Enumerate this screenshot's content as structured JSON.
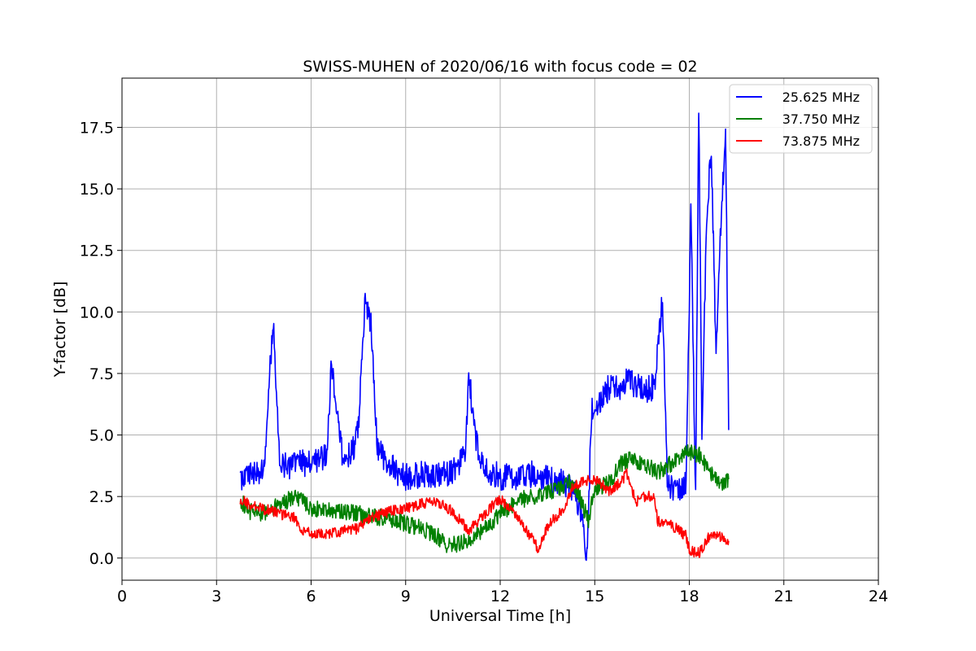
{
  "chart_data": {
    "type": "line",
    "title": "SWISS-MUHEN of 2020/06/16 with focus code = 02",
    "xlabel": "Universal Time [h]",
    "ylabel": "Y-factor [dB]",
    "xlim": [
      0,
      24
    ],
    "ylim": [
      -0.9,
      19.5
    ],
    "xticks": [
      0,
      3,
      6,
      9,
      12,
      15,
      18,
      21,
      24
    ],
    "xtick_labels": [
      "0",
      "3",
      "6",
      "9",
      "12",
      "15",
      "18",
      "21",
      "24"
    ],
    "yticks": [
      0.0,
      2.5,
      5.0,
      7.5,
      10.0,
      12.5,
      15.0,
      17.5
    ],
    "ytick_labels": [
      "0.0",
      "2.5",
      "5.0",
      "7.5",
      "10.0",
      "12.5",
      "15.0",
      "17.5"
    ],
    "grid": true,
    "legend_position": "top-right",
    "series": [
      {
        "name": "25.625 MHz",
        "color": "#0000ff",
        "x": [
          3.75,
          4.0,
          4.5,
          4.8,
          5.0,
          5.5,
          6.0,
          6.5,
          6.65,
          7.0,
          7.3,
          7.5,
          7.7,
          7.9,
          8.1,
          8.4,
          8.7,
          9.0,
          9.5,
          10.0,
          10.5,
          10.9,
          11.0,
          11.2,
          11.5,
          12.0,
          12.5,
          13.0,
          13.5,
          14.0,
          14.3,
          14.6,
          14.75,
          14.9,
          15.2,
          15.5,
          15.8,
          16.0,
          16.3,
          16.6,
          16.9,
          17.15,
          17.3,
          17.6,
          17.9,
          18.05,
          18.2,
          18.3,
          18.4,
          18.55,
          18.7,
          18.85,
          19.0,
          19.15,
          19.25
        ],
        "y": [
          3.3,
          3.4,
          3.6,
          9.8,
          3.7,
          3.8,
          3.9,
          4.2,
          8.0,
          4.0,
          4.3,
          5.2,
          10.3,
          9.5,
          4.5,
          3.9,
          3.5,
          3.3,
          3.4,
          3.3,
          3.5,
          4.3,
          7.6,
          5.0,
          3.6,
          3.3,
          3.3,
          3.4,
          3.2,
          3.1,
          2.8,
          1.8,
          0.0,
          6.0,
          6.5,
          7.0,
          6.8,
          7.2,
          7.0,
          6.8,
          7.0,
          10.6,
          3.0,
          2.8,
          3.0,
          14.3,
          2.5,
          18.5,
          5.0,
          14.0,
          16.6,
          8.0,
          13.5,
          17.3,
          5.2
        ]
      },
      {
        "name": "37.750 MHz",
        "color": "#008000",
        "x": [
          3.75,
          4.0,
          4.5,
          5.0,
          5.5,
          6.0,
          6.5,
          7.0,
          7.5,
          8.0,
          8.5,
          9.0,
          9.5,
          10.0,
          10.3,
          10.7,
          11.0,
          11.5,
          12.0,
          12.5,
          13.0,
          13.5,
          14.0,
          14.3,
          14.6,
          14.8,
          15.0,
          15.5,
          15.8,
          16.0,
          16.5,
          17.0,
          17.5,
          18.0,
          18.3,
          18.6,
          19.0,
          19.25
        ],
        "y": [
          2.4,
          1.9,
          1.8,
          2.2,
          2.5,
          2.0,
          2.0,
          1.9,
          1.8,
          1.7,
          1.6,
          1.4,
          1.2,
          0.9,
          0.5,
          0.6,
          0.8,
          1.2,
          1.8,
          2.3,
          2.5,
          2.7,
          2.9,
          3.2,
          2.2,
          1.5,
          2.8,
          3.1,
          3.8,
          4.0,
          3.9,
          3.5,
          3.9,
          4.3,
          4.2,
          3.6,
          3.0,
          3.2
        ]
      },
      {
        "name": "73.875 MHz",
        "color": "#ff0000",
        "x": [
          3.75,
          4.0,
          4.5,
          5.0,
          5.3,
          5.5,
          5.7,
          6.0,
          6.5,
          7.0,
          7.5,
          8.0,
          8.5,
          9.0,
          9.5,
          10.0,
          10.5,
          11.0,
          11.5,
          12.0,
          12.3,
          12.6,
          13.0,
          13.2,
          13.5,
          14.0,
          14.3,
          14.6,
          15.0,
          15.5,
          15.9,
          16.0,
          16.3,
          16.6,
          16.9,
          17.0,
          17.3,
          17.6,
          17.9,
          18.0,
          18.3,
          18.6,
          19.0,
          19.25
        ],
        "y": [
          2.4,
          2.2,
          2.0,
          1.8,
          1.7,
          1.6,
          1.1,
          1.0,
          1.0,
          1.1,
          1.2,
          1.7,
          1.9,
          2.0,
          2.2,
          2.3,
          1.9,
          1.1,
          1.8,
          2.4,
          2.0,
          1.5,
          0.8,
          0.4,
          1.3,
          2.0,
          2.9,
          3.1,
          3.2,
          2.7,
          3.2,
          3.5,
          2.3,
          2.5,
          2.5,
          1.5,
          1.4,
          1.2,
          0.9,
          0.3,
          0.2,
          0.8,
          0.9,
          0.7
        ]
      }
    ]
  }
}
